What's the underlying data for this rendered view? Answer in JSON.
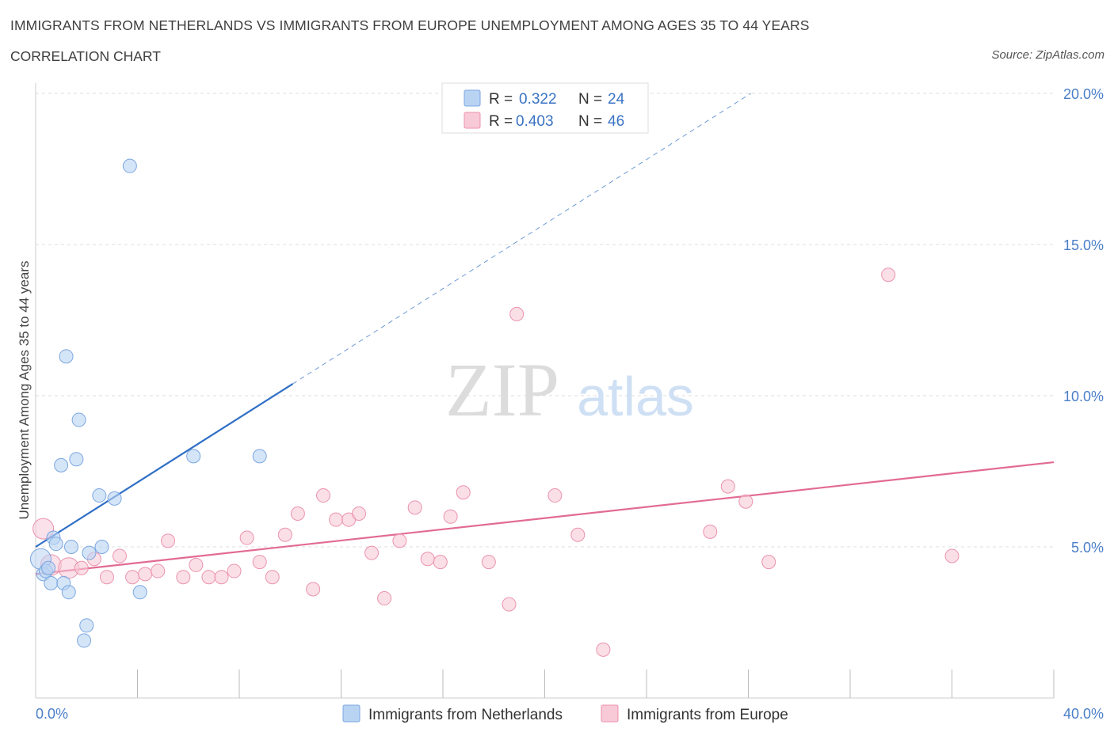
{
  "title": "IMMIGRANTS FROM NETHERLANDS VS IMMIGRANTS FROM EUROPE UNEMPLOYMENT AMONG AGES 35 TO 44 YEARS",
  "subtitle": "CORRELATION CHART",
  "source": "Source: ZipAtlas.com",
  "watermark": {
    "zip": "ZIP",
    "atlas": "atlas"
  },
  "legend": {
    "r_label": "R =",
    "n_label": "N =",
    "rows": [
      {
        "r": "0.322",
        "n": "24"
      },
      {
        "r": "0.403",
        "n": "46"
      }
    ]
  },
  "colors": {
    "netherlands_fill": "#b9d3f3",
    "netherlands_stroke": "#7ba7e0",
    "netherlands_line": "#2f6fc6",
    "europe_fill": "#f8c9d7",
    "europe_stroke": "#eb93ae",
    "europe_line": "#e26b93",
    "tick_text": "#4a7ec9",
    "grid": "#dcdcdc"
  },
  "chart_data": {
    "type": "scatter",
    "title": "IMMIGRANTS FROM NETHERLANDS VS IMMIGRANTS FROM EUROPE UNEMPLOYMENT AMONG AGES 35 TO 44 YEARS",
    "xlabel": "",
    "ylabel": "Unemployment Among Ages 35 to 44 years",
    "xlim": [
      0,
      40
    ],
    "ylim": [
      0,
      20
    ],
    "x_tick_labels": [
      "0.0%",
      "40.0%"
    ],
    "y_tick_labels": [
      "5.0%",
      "10.0%",
      "15.0%",
      "20.0%"
    ],
    "y_tick_values": [
      5,
      10,
      15,
      20
    ],
    "grid": true,
    "legend_position": "top-center",
    "series": [
      {
        "name": "Immigrants from Netherlands",
        "r": 0.322,
        "n": 24,
        "trend": {
          "x_start": 0,
          "y_start": 5.0,
          "x_solid_end": 10.1,
          "x_end": 28.1,
          "y_end": 20.0
        },
        "points": [
          {
            "x": 0.2,
            "y": 4.6,
            "big": true
          },
          {
            "x": 0.3,
            "y": 4.1
          },
          {
            "x": 0.4,
            "y": 4.2
          },
          {
            "x": 0.5,
            "y": 4.3
          },
          {
            "x": 0.6,
            "y": 3.8
          },
          {
            "x": 0.7,
            "y": 5.3
          },
          {
            "x": 0.8,
            "y": 5.1
          },
          {
            "x": 1.0,
            "y": 7.7
          },
          {
            "x": 1.1,
            "y": 3.8
          },
          {
            "x": 1.2,
            "y": 11.3
          },
          {
            "x": 1.3,
            "y": 3.5
          },
          {
            "x": 1.4,
            "y": 5.0
          },
          {
            "x": 1.6,
            "y": 7.9
          },
          {
            "x": 1.7,
            "y": 9.2
          },
          {
            "x": 1.9,
            "y": 1.9
          },
          {
            "x": 2.0,
            "y": 2.4
          },
          {
            "x": 2.1,
            "y": 4.8
          },
          {
            "x": 2.5,
            "y": 6.7
          },
          {
            "x": 2.6,
            "y": 5.0
          },
          {
            "x": 3.1,
            "y": 6.6
          },
          {
            "x": 3.7,
            "y": 17.6
          },
          {
            "x": 4.1,
            "y": 3.5
          },
          {
            "x": 6.2,
            "y": 8.0
          },
          {
            "x": 8.8,
            "y": 8.0
          }
        ]
      },
      {
        "name": "Immigrants from Europe",
        "r": 0.403,
        "n": 46,
        "trend": {
          "x_start": 0,
          "y_start": 4.1,
          "x_end": 40,
          "y_end": 7.8
        },
        "points": [
          {
            "x": 0.3,
            "y": 5.6,
            "big": true
          },
          {
            "x": 0.6,
            "y": 4.4,
            "big": true
          },
          {
            "x": 1.3,
            "y": 4.3,
            "big": true
          },
          {
            "x": 1.8,
            "y": 4.3
          },
          {
            "x": 2.3,
            "y": 4.6
          },
          {
            "x": 2.8,
            "y": 4.0
          },
          {
            "x": 3.3,
            "y": 4.7
          },
          {
            "x": 3.8,
            "y": 4.0
          },
          {
            "x": 4.3,
            "y": 4.1
          },
          {
            "x": 4.8,
            "y": 4.2
          },
          {
            "x": 5.2,
            "y": 5.2
          },
          {
            "x": 5.8,
            "y": 4.0
          },
          {
            "x": 6.3,
            "y": 4.4
          },
          {
            "x": 6.8,
            "y": 4.0
          },
          {
            "x": 7.3,
            "y": 4.0
          },
          {
            "x": 7.8,
            "y": 4.2
          },
          {
            "x": 8.3,
            "y": 5.3
          },
          {
            "x": 8.8,
            "y": 4.5
          },
          {
            "x": 9.3,
            "y": 4.0
          },
          {
            "x": 9.8,
            "y": 5.4
          },
          {
            "x": 10.3,
            "y": 6.1
          },
          {
            "x": 10.9,
            "y": 3.6
          },
          {
            "x": 11.3,
            "y": 6.7
          },
          {
            "x": 11.8,
            "y": 5.9
          },
          {
            "x": 12.3,
            "y": 5.9
          },
          {
            "x": 12.7,
            "y": 6.1
          },
          {
            "x": 13.2,
            "y": 4.8
          },
          {
            "x": 13.7,
            "y": 3.3
          },
          {
            "x": 14.3,
            "y": 5.2
          },
          {
            "x": 14.9,
            "y": 6.3
          },
          {
            "x": 15.4,
            "y": 4.6
          },
          {
            "x": 15.9,
            "y": 4.5
          },
          {
            "x": 16.3,
            "y": 6.0
          },
          {
            "x": 16.8,
            "y": 6.8
          },
          {
            "x": 17.8,
            "y": 4.5
          },
          {
            "x": 18.6,
            "y": 3.1
          },
          {
            "x": 18.9,
            "y": 12.7
          },
          {
            "x": 20.4,
            "y": 6.7
          },
          {
            "x": 21.3,
            "y": 5.4
          },
          {
            "x": 22.3,
            "y": 1.6
          },
          {
            "x": 26.5,
            "y": 5.5
          },
          {
            "x": 27.2,
            "y": 7.0
          },
          {
            "x": 27.9,
            "y": 6.5
          },
          {
            "x": 28.8,
            "y": 4.5
          },
          {
            "x": 33.5,
            "y": 14.0
          },
          {
            "x": 36.0,
            "y": 4.7
          }
        ]
      }
    ]
  }
}
